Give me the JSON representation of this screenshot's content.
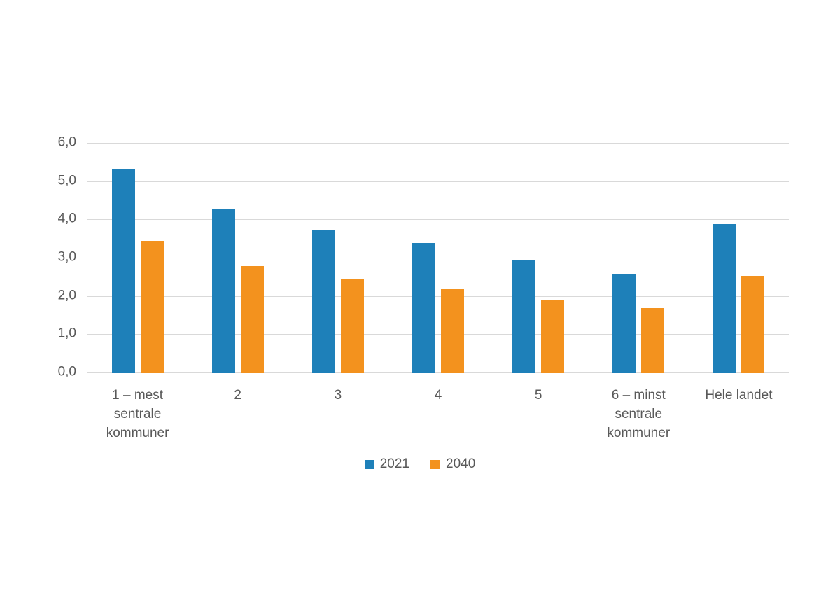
{
  "chart_data": {
    "type": "bar",
    "title": "",
    "xlabel": "",
    "ylabel": "",
    "categories": [
      "1 – mest sentrale kommuner",
      "2",
      "3",
      "4",
      "5",
      "6 – minst sentrale kommuner",
      "Hele landet"
    ],
    "series": [
      {
        "name": "2021",
        "color": "#1e80b9",
        "values": [
          5.35,
          4.3,
          3.75,
          3.4,
          2.95,
          2.6,
          3.9
        ]
      },
      {
        "name": "2040",
        "color": "#f3921e",
        "values": [
          3.45,
          2.8,
          2.45,
          2.2,
          1.9,
          1.7,
          2.55
        ]
      }
    ],
    "ylim": [
      0,
      6
    ],
    "ytick_labels": [
      "0,0",
      "1,0",
      "2,0",
      "3,0",
      "4,0",
      "5,0",
      "6,0"
    ],
    "grid": true,
    "legend_position": "bottom",
    "colors": {
      "gridline": "#d9d9d9",
      "axis_text": "#595959",
      "background": "#ffffff"
    }
  }
}
